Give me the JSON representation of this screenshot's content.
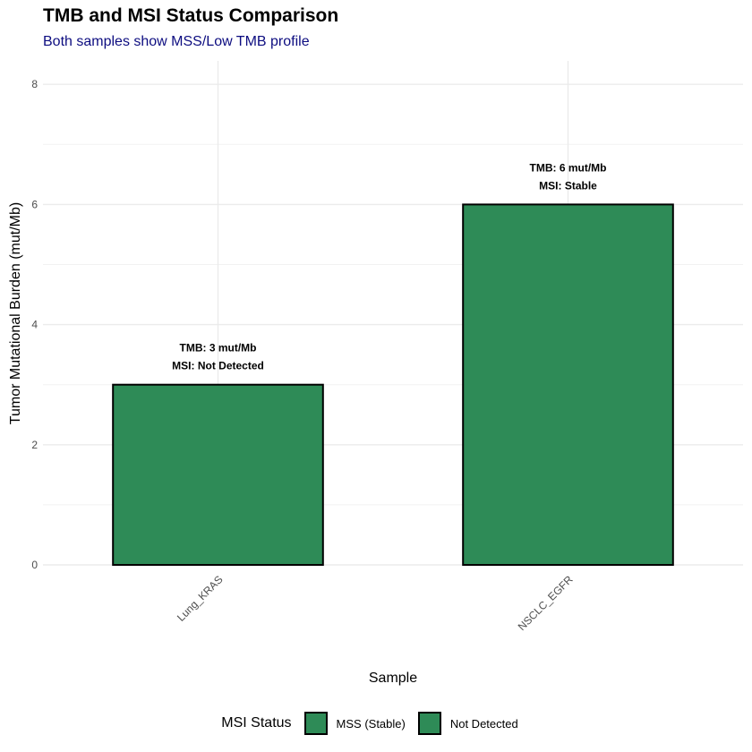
{
  "chart_data": {
    "type": "bar",
    "title": "TMB and MSI Status Comparison",
    "subtitle": "Both samples show MSS/Low TMB profile",
    "xlabel": "Sample",
    "ylabel": "Tumor Mutational Burden (mut/Mb)",
    "categories": [
      "Lung_KRAS",
      "NSCLC_EGFR"
    ],
    "values": [
      3,
      6
    ],
    "ylim": [
      0,
      8
    ],
    "yticks": [
      "0",
      "2",
      "4",
      "6",
      "8"
    ],
    "grid": true,
    "bar_color": "#2e8b57",
    "bar_labels": [
      [
        "TMB: 3 mut/Mb",
        "MSI: Not Detected"
      ],
      [
        "TMB: 6 mut/Mb",
        "MSI: Stable"
      ]
    ],
    "legend": {
      "title": "MSI Status",
      "position": "bottom",
      "items": [
        {
          "label": "MSS (Stable)",
          "color": "#2e8b57"
        },
        {
          "label": "Not Detected",
          "color": "#2e8b57"
        }
      ]
    }
  }
}
